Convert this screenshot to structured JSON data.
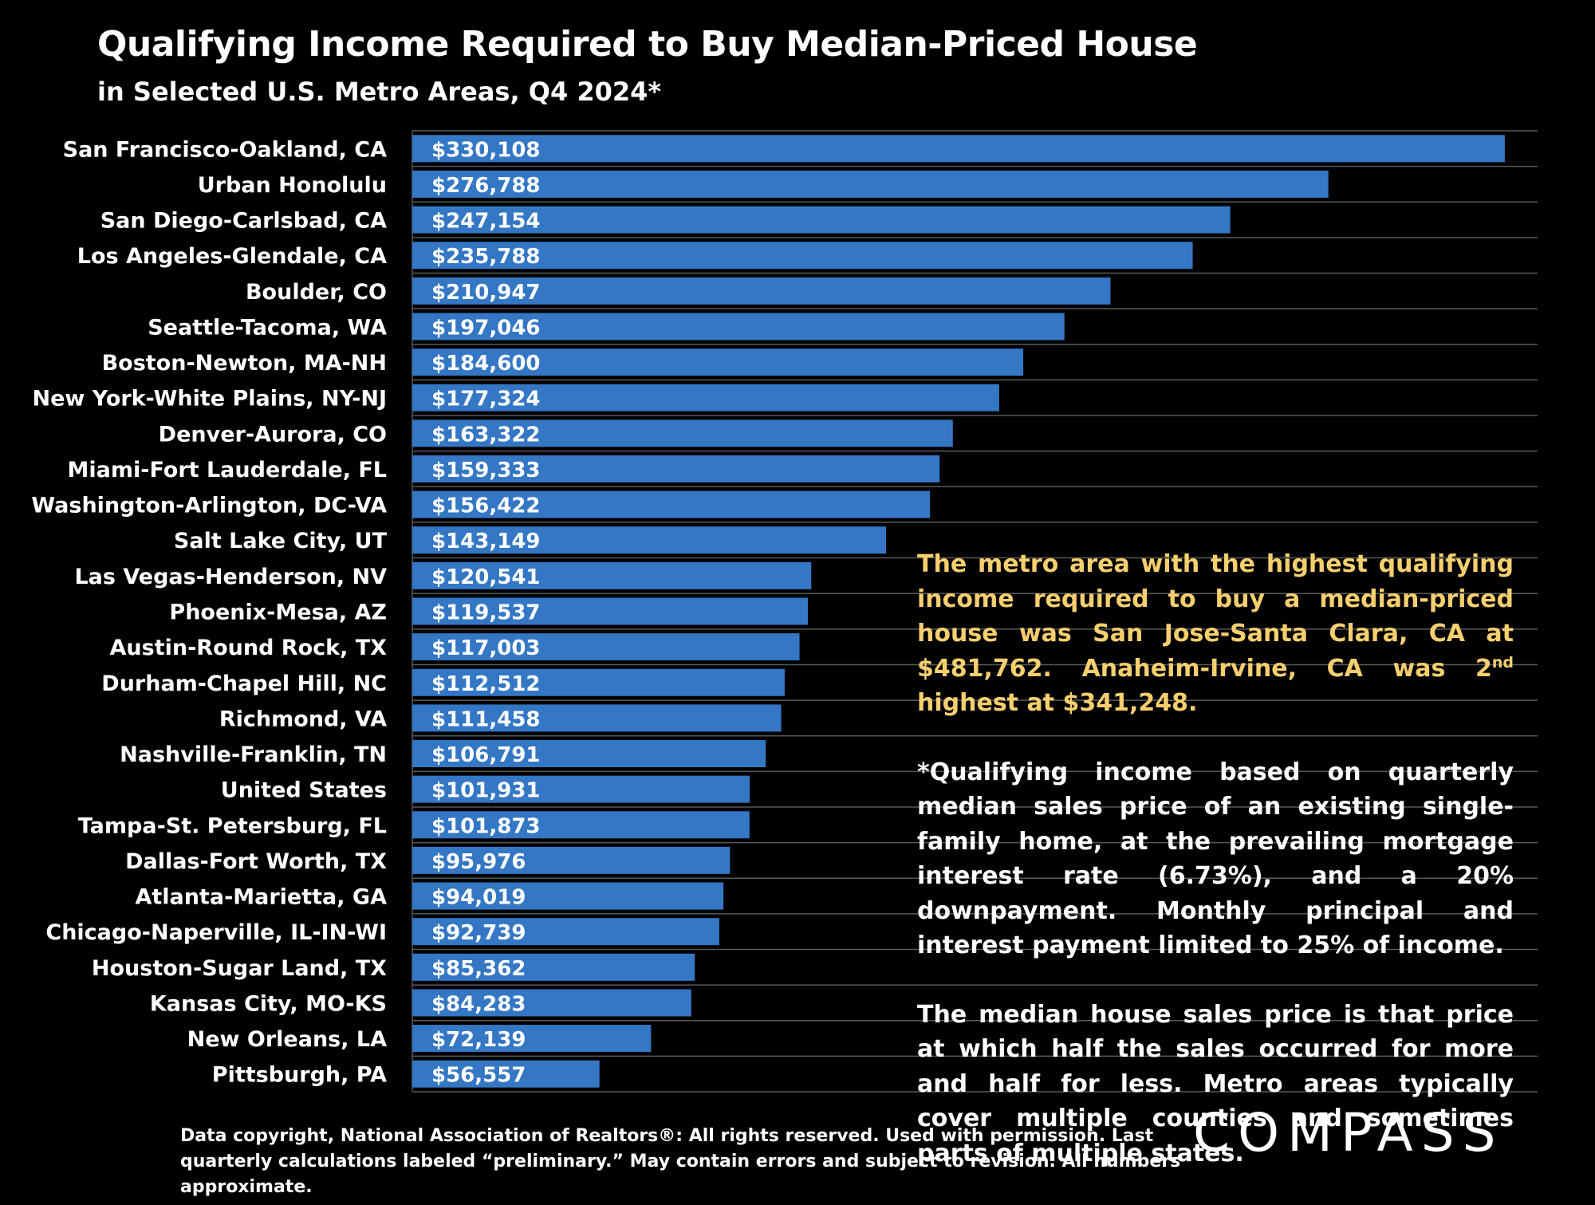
{
  "title": "Qualifying Income Required to Buy Median-Priced House",
  "subtitle": "in Selected U.S. Metro Areas, Q4 2024*",
  "chart_data": {
    "type": "bar",
    "orientation": "horizontal",
    "categories": [
      "San Francisco-Oakland, CA",
      "Urban Honolulu",
      "San Diego-Carlsbad, CA",
      "Los Angeles-Glendale, CA",
      "Boulder, CO",
      "Seattle-Tacoma, WA",
      "Boston-Newton, MA-NH",
      "New York-White Plains, NY-NJ",
      "Denver-Aurora, CO",
      "Miami-Fort Lauderdale, FL",
      "Washington-Arlington, DC-VA",
      "Salt Lake City, UT",
      "Las Vegas-Henderson, NV",
      "Phoenix-Mesa, AZ",
      "Austin-Round Rock, TX",
      "Durham-Chapel Hill, NC",
      "Richmond, VA",
      "Nashville-Franklin, TN",
      "United States",
      "Tampa-St. Petersburg, FL",
      "Dallas-Fort Worth, TX",
      "Atlanta-Marietta, GA",
      "Chicago-Naperville, IL-IN-WI",
      "Houston-Sugar Land, TX",
      "Kansas City, MO-KS",
      "New Orleans, LA",
      "Pittsburgh, PA"
    ],
    "values": [
      330108,
      276788,
      247154,
      235788,
      210947,
      197046,
      184600,
      177324,
      163322,
      159333,
      156422,
      143149,
      120541,
      119537,
      117003,
      112512,
      111458,
      106791,
      101931,
      101873,
      95976,
      94019,
      92739,
      85362,
      84283,
      72139,
      56557
    ],
    "value_labels": [
      "$330,108",
      "$276,788",
      "$247,154",
      "$235,788",
      "$210,947",
      "$197,046",
      "$184,600",
      "$177,324",
      "$163,322",
      "$159,333",
      "$156,422",
      "$143,149",
      "$120,541",
      "$119,537",
      "$117,003",
      "$112,512",
      "$111,458",
      "$106,791",
      "$101,931",
      "$101,873",
      "$95,976",
      "$94,019",
      "$92,739",
      "$85,362",
      "$84,283",
      "$72,139",
      "$56,557"
    ],
    "xlim": [
      0,
      340000
    ],
    "grid": "horizontal lines between bars",
    "bar_color": "#3477c4"
  },
  "callout": {
    "highlight_pre": "The metro area with the highest qualifying income required to buy a median-priced house was San Jose-Santa Clara, CA at $481,762. Anaheim-Irvine, CA was 2",
    "highlight_sup": "nd",
    "highlight_post": " highest at $341,248.",
    "note1": "*Qualifying income based on quarterly median sales price of an existing single-family home, at the prevailing mortgage interest rate (6.73%), and a 20% downpayment. Monthly principal and interest payment limited to 25% of income.",
    "note2": "The median house sales price is that price at which half the sales occurred for more and half for less. Metro areas typically cover multiple counties and sometimes parts of multiple states."
  },
  "footnote": "Data copyright, National Association of Realtors®: All rights reserved. Used with permission. Last quarterly calculations labeled “preliminary.” May contain errors and subject to revision. All numbers approximate.",
  "logo": "COMPASS",
  "colors": {
    "background": "#000000",
    "bar": "#3477c4",
    "highlight": "#f6cf6e",
    "gridline": "#595959"
  }
}
